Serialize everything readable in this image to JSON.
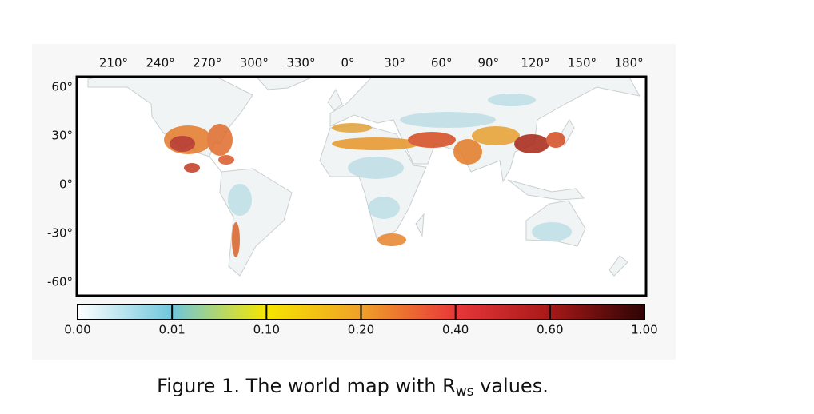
{
  "map": {
    "lon_labels": [
      "210°",
      "240°",
      "270°",
      "300°",
      "330°",
      "0°",
      "30°",
      "60°",
      "90°",
      "120°",
      "150°",
      "180°"
    ],
    "lat_labels": [
      "60°",
      "30°",
      "0°",
      "-30°",
      "-60°"
    ]
  },
  "colorbar": {
    "ticks": [
      {
        "value": 0,
        "label": "0.00"
      },
      {
        "value": 0.01,
        "label": "0.01"
      },
      {
        "value": 0.1,
        "label": "0.10"
      },
      {
        "value": 0.2,
        "label": "0.20"
      },
      {
        "value": 0.4,
        "label": "0.40"
      },
      {
        "value": 0.6,
        "label": "0.60"
      },
      {
        "value": 1,
        "label": "1.00"
      }
    ]
  },
  "caption": {
    "prefix": "Figure 1. The world map with R",
    "subscript": "ws",
    "suffix": " values."
  }
}
